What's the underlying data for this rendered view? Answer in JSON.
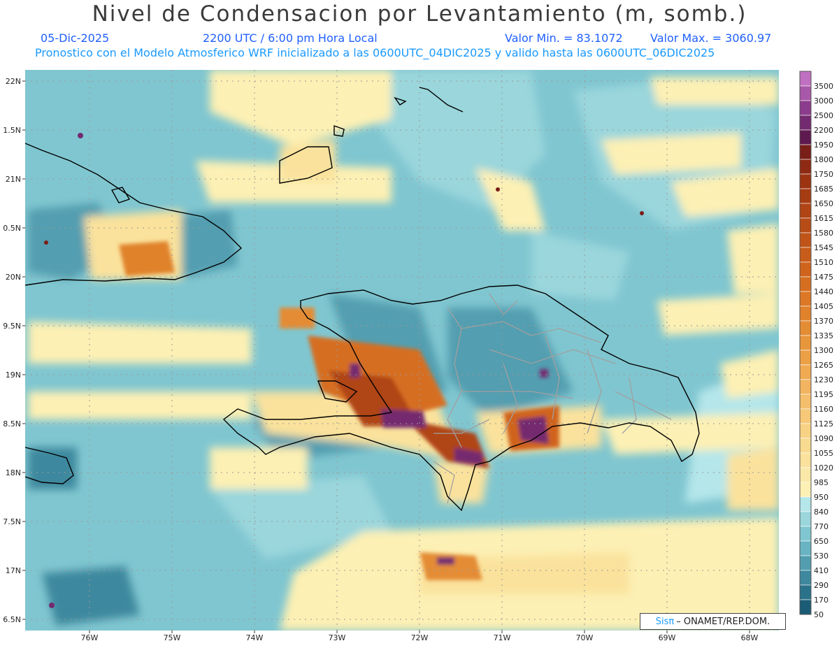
{
  "header": {
    "title": "Nivel de Condensacion por Levantamiento (m, somb.)",
    "date": "05-Dic-2025",
    "time": "2200 UTC / 6:00 pm Hora Local",
    "min_label": "Valor Min. = 83.1072",
    "max_label": "Valor Max. = 3060.97",
    "model_line": "Pronostico con el Modelo Atmosferico WRF inicializado a las 0600UTC_04DIC2025 y valido hasta las  0600UTC_06DIC2025"
  },
  "axes": {
    "lat_labels": [
      "22N",
      "1.5N",
      "21N",
      "0.5N",
      "20N",
      "9.5N",
      "19N",
      "8.5N",
      "18N",
      "7.5N",
      "17N",
      "6.5N"
    ],
    "lon_labels": [
      "76W",
      "75W",
      "74W",
      "73W",
      "72W",
      "71W",
      "70W",
      "69W",
      "68W"
    ]
  },
  "colorbar": {
    "labels": [
      "3500",
      "3000",
      "2500",
      "2200",
      "1950",
      "1800",
      "1750",
      "1685",
      "1650",
      "1615",
      "1580",
      "1545",
      "1510",
      "1475",
      "1440",
      "1405",
      "1370",
      "1335",
      "1300",
      "1265",
      "1230",
      "1195",
      "1160",
      "1125",
      "1090",
      "1055",
      "1020",
      "985",
      "950",
      "840",
      "770",
      "650",
      "530",
      "410",
      "290",
      "170",
      "50"
    ],
    "colors": [
      "#c070c0",
      "#a858a8",
      "#8c3c8c",
      "#742a70",
      "#5e1a4e",
      "#7a1e18",
      "#8e2a14",
      "#9c3412",
      "#a63c12",
      "#b04414",
      "#b84c16",
      "#c05418",
      "#c85c1a",
      "#d0641c",
      "#d66e20",
      "#dc7826",
      "#e0822c",
      "#e48c34",
      "#e8963c",
      "#eca046",
      "#f0aa52",
      "#f2b460",
      "#f4be6c",
      "#f6c878",
      "#f8d284",
      "#f8da90",
      "#fae29c",
      "#fae8a8",
      "#fdf0b4",
      "#b4e6ea",
      "#9ad6dc",
      "#80c6d0",
      "#68b4c2",
      "#529eb0",
      "#3e889e",
      "#2a728a",
      "#1a5c76"
    ]
  },
  "credit": {
    "sis": "Sisπ",
    "org": "– ONAMET/REP.DOM."
  }
}
